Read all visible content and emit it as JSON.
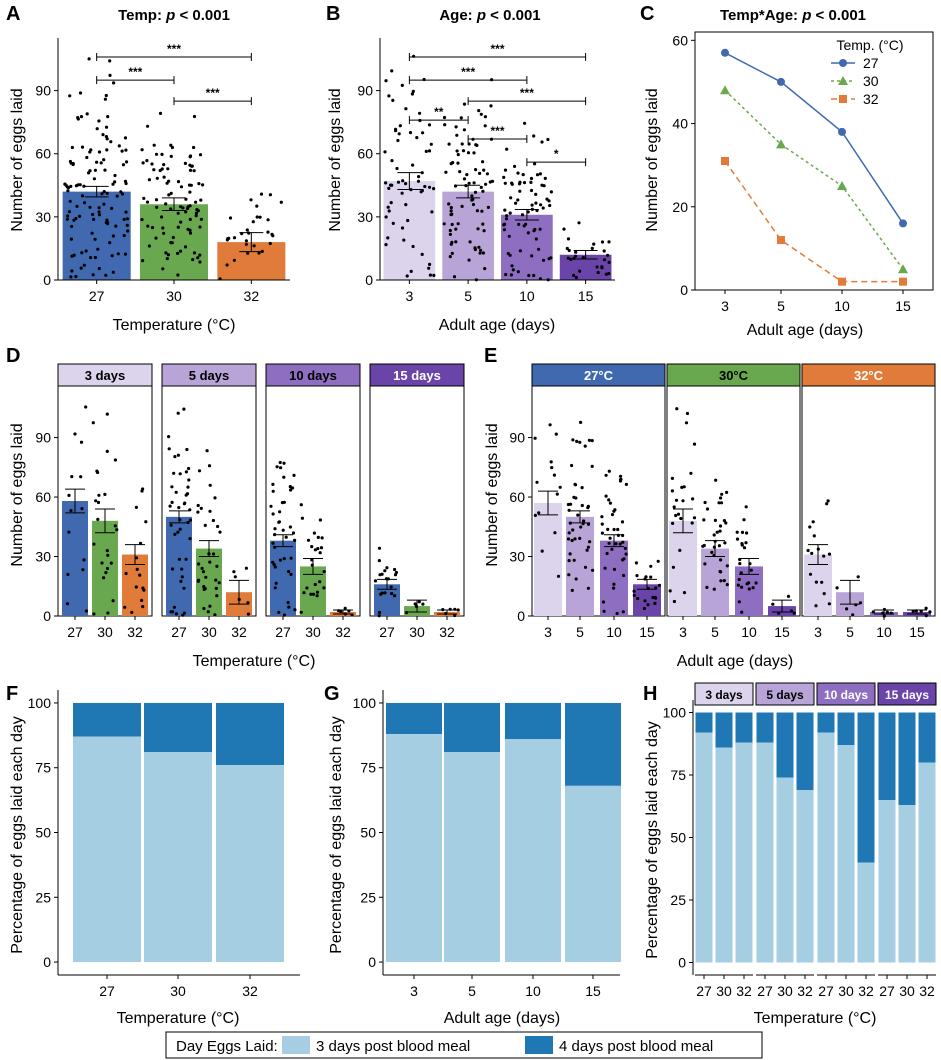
{
  "colors": {
    "temp_27": "#4169b0",
    "temp_30": "#6aa84f",
    "temp_32": "#e07b39",
    "age_3": "#dcd3ec",
    "age_5": "#b8a4d6",
    "age_10": "#8e6ec0",
    "age_15": "#6a44a8",
    "day3": "#a6cee3",
    "day4": "#1f78b4"
  },
  "panels": {
    "A": {
      "letter": "A",
      "title": "Temp: p < 0.001",
      "xlabel": "Temperature (°C)",
      "ylabel": "Number of eggs laid"
    },
    "B": {
      "letter": "B",
      "title": "Age: p < 0.001",
      "xlabel": "Adult age (days)",
      "ylabel": "Number of eggs laid"
    },
    "C": {
      "letter": "C",
      "title": "Temp*Age: p < 0.001",
      "xlabel": "Adult age (days)",
      "ylabel": "Number of eggs laid"
    },
    "D": {
      "letter": "D",
      "xlabel": "Temperature (°C)",
      "ylabel": "Number of eggs laid"
    },
    "E": {
      "letter": "E",
      "xlabel": "Adult age (days)",
      "ylabel": "Number of eggs laid"
    },
    "F": {
      "letter": "F",
      "xlabel": "Temperature (°C)",
      "ylabel": "Percentage of eggs laid each day"
    },
    "G": {
      "letter": "G",
      "xlabel": "Adult age (days)",
      "ylabel": "Percentage of eggs laid each day"
    },
    "H": {
      "letter": "H",
      "xlabel": "Temperature (°C)",
      "ylabel": "Percentage of eggs laid each day"
    }
  },
  "legend": {
    "title": "Day Eggs Laid:",
    "item1": "3 days post blood meal",
    "item2": "4 days post blood meal"
  },
  "chart_data": [
    {
      "id": "A",
      "type": "bar",
      "title": "Temp: p < 0.001",
      "xlabel": "Temperature (°C)",
      "ylabel": "Number of eggs laid",
      "categories": [
        "27",
        "30",
        "32"
      ],
      "values": [
        42,
        36,
        18
      ],
      "errors": [
        2.5,
        3,
        4.5
      ],
      "ylim": [
        0,
        115
      ],
      "yticks": [
        0,
        30,
        60,
        90
      ],
      "significance": [
        {
          "from": 0,
          "to": 2,
          "label": "***",
          "y": 106
        },
        {
          "from": 0,
          "to": 1,
          "label": "***",
          "y": 95
        },
        {
          "from": 1,
          "to": 2,
          "label": "***",
          "y": 85
        }
      ]
    },
    {
      "id": "B",
      "type": "bar",
      "title": "Age: p < 0.001",
      "xlabel": "Adult age (days)",
      "ylabel": "Number of eggs laid",
      "categories": [
        "3",
        "5",
        "10",
        "15"
      ],
      "values": [
        47,
        42,
        31,
        12
      ],
      "errors": [
        4,
        3,
        2.5,
        2
      ],
      "ylim": [
        0,
        115
      ],
      "yticks": [
        0,
        30,
        60,
        90
      ],
      "significance": [
        {
          "from": 0,
          "to": 3,
          "label": "***",
          "y": 106
        },
        {
          "from": 0,
          "to": 2,
          "label": "***",
          "y": 95
        },
        {
          "from": 1,
          "to": 3,
          "label": "***",
          "y": 85
        },
        {
          "from": 0,
          "to": 1,
          "label": "**",
          "y": 76
        },
        {
          "from": 1,
          "to": 2,
          "label": "***",
          "y": 67
        },
        {
          "from": 2,
          "to": 3,
          "label": "*",
          "y": 56
        }
      ]
    },
    {
      "id": "C",
      "type": "line",
      "title": "Temp*Age: p < 0.001",
      "xlabel": "Adult age (days)",
      "ylabel": "Number of eggs laid",
      "x": [
        "3",
        "5",
        "10",
        "15"
      ],
      "ylim": [
        0,
        62
      ],
      "yticks": [
        0,
        20,
        40,
        60
      ],
      "legend_title": "Temp. (°C)",
      "legend_position": "top-right",
      "series": [
        {
          "name": "27",
          "values": [
            57,
            50,
            38,
            16
          ]
        },
        {
          "name": "30",
          "values": [
            48,
            35,
            25,
            5
          ]
        },
        {
          "name": "32",
          "values": [
            31,
            12,
            2,
            2
          ]
        }
      ]
    },
    {
      "id": "D",
      "type": "bar",
      "xlabel": "Temperature (°C)",
      "ylabel": "Number of eggs laid",
      "ylim": [
        0,
        115
      ],
      "yticks": [
        0,
        30,
        60,
        90
      ],
      "categories": [
        "27",
        "30",
        "32"
      ],
      "facets": [
        {
          "label": "3 days",
          "values": [
            58,
            48,
            31
          ],
          "errors": [
            6,
            6,
            5
          ]
        },
        {
          "label": "5 days",
          "values": [
            50,
            34,
            12
          ],
          "errors": [
            3,
            4,
            6
          ]
        },
        {
          "label": "10 days",
          "values": [
            38,
            25,
            2
          ],
          "errors": [
            3,
            4,
            1
          ]
        },
        {
          "label": "15 days",
          "values": [
            16,
            5,
            2
          ],
          "errors": [
            2.5,
            3,
            1
          ]
        }
      ]
    },
    {
      "id": "E",
      "type": "bar",
      "xlabel": "Adult age (days)",
      "ylabel": "Number of eggs laid",
      "ylim": [
        0,
        115
      ],
      "yticks": [
        0,
        30,
        60,
        90
      ],
      "categories": [
        "3",
        "5",
        "10",
        "15"
      ],
      "facets": [
        {
          "label": "27°C",
          "values": [
            57,
            50,
            38,
            16
          ],
          "errors": [
            6,
            3,
            3,
            2.5
          ]
        },
        {
          "label": "30°C",
          "values": [
            48,
            34,
            25,
            5
          ],
          "errors": [
            6,
            4,
            4,
            3
          ]
        },
        {
          "label": "32°C",
          "values": [
            31,
            12,
            2,
            2
          ],
          "errors": [
            5,
            6,
            1,
            1
          ]
        }
      ]
    },
    {
      "id": "F",
      "type": "bar",
      "stacked": true,
      "xlabel": "Temperature (°C)",
      "ylabel": "Percentage of eggs laid each day",
      "categories": [
        "27",
        "30",
        "32"
      ],
      "ylim": [
        0,
        100
      ],
      "yticks": [
        0,
        25,
        50,
        75,
        100
      ],
      "series": [
        {
          "name": "3 days post blood meal",
          "values": [
            87,
            81,
            76
          ]
        },
        {
          "name": "4 days post blood meal",
          "values": [
            13,
            19,
            24
          ]
        }
      ]
    },
    {
      "id": "G",
      "type": "bar",
      "stacked": true,
      "xlabel": "Adult age (days)",
      "ylabel": "Percentage of eggs laid each day",
      "categories": [
        "3",
        "5",
        "10",
        "15"
      ],
      "ylim": [
        0,
        100
      ],
      "yticks": [
        0,
        25,
        50,
        75,
        100
      ],
      "series": [
        {
          "name": "3 days post blood meal",
          "values": [
            88,
            81,
            86,
            68
          ]
        },
        {
          "name": "4 days post blood meal",
          "values": [
            12,
            19,
            14,
            32
          ]
        }
      ]
    },
    {
      "id": "H",
      "type": "bar",
      "stacked": true,
      "xlabel": "Temperature (°C)",
      "ylabel": "Percentage of eggs laid each day",
      "categories": [
        "27",
        "30",
        "32"
      ],
      "ylim": [
        0,
        100
      ],
      "yticks": [
        0,
        25,
        50,
        75,
        100
      ],
      "facets": [
        {
          "label": "3 days",
          "day3": [
            92,
            86,
            88
          ]
        },
        {
          "label": "5 days",
          "day3": [
            88,
            74,
            69
          ]
        },
        {
          "label": "10 days",
          "day3": [
            92,
            87,
            40
          ]
        },
        {
          "label": "15 days",
          "day3": [
            65,
            63,
            80
          ]
        }
      ]
    }
  ]
}
